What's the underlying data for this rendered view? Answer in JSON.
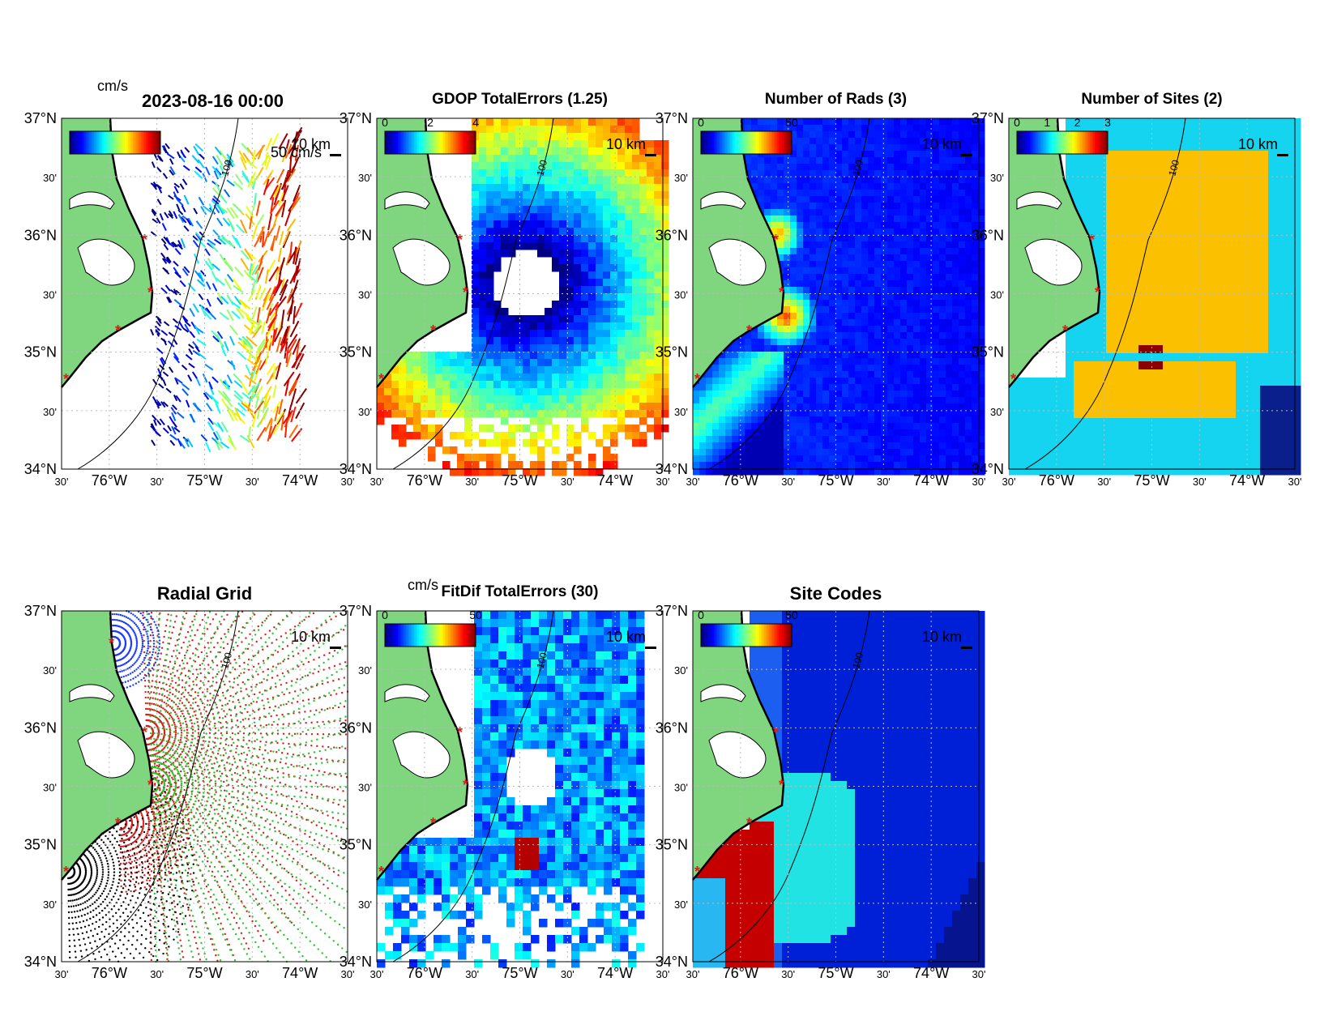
{
  "figure": {
    "timestamp": "2023-08-16 00:00",
    "lat_labels": [
      "37°N",
      "30'",
      "36°N",
      "30'",
      "35°N",
      "30'",
      "34°N"
    ],
    "lon_labels": [
      "30'",
      "76°W",
      "30'",
      "75°W",
      "30'",
      "74°W",
      "30'"
    ],
    "scale_bar_label": "10 km",
    "contour_depth_label": "100",
    "colors": {
      "land": "#7fd67f",
      "coast": "#000000",
      "site_marker": "#e01b1b",
      "grid": "#bbbbbb"
    }
  },
  "panels": [
    {
      "id": "total-velocity",
      "title": "",
      "unit": "cm/s",
      "colorbar_ticks": [],
      "arrow_scale_label": "50 cm/s",
      "kind": "vectors"
    },
    {
      "id": "gdop",
      "title": "GDOP TotalErrors (1.25)",
      "unit": "",
      "colorbar_ticks": [
        "0",
        "2",
        "4"
      ],
      "contour_label": "1.25",
      "kind": "field"
    },
    {
      "id": "num-rads",
      "title": "Number of Rads (3)",
      "unit": "",
      "colorbar_ticks": [
        "0",
        "50"
      ],
      "contour_label": "3",
      "kind": "field"
    },
    {
      "id": "num-sites",
      "title": "Number of Sites (2)",
      "unit": "",
      "colorbar_ticks": [
        "0",
        "1",
        "2",
        "3"
      ],
      "contour_label": "2",
      "kind": "field"
    },
    {
      "id": "radial-grid",
      "title": "Radial Grid",
      "unit": "",
      "colorbar_ticks": [],
      "kind": "grid"
    },
    {
      "id": "fitdif",
      "title": "FitDif TotalErrors (30)",
      "unit": "cm/s",
      "colorbar_ticks": [
        "0",
        "50"
      ],
      "contour_label": "30",
      "kind": "field"
    },
    {
      "id": "site-codes",
      "title": "Site Codes",
      "unit": "",
      "colorbar_ticks": [
        "0",
        "50"
      ],
      "kind": "field"
    }
  ]
}
